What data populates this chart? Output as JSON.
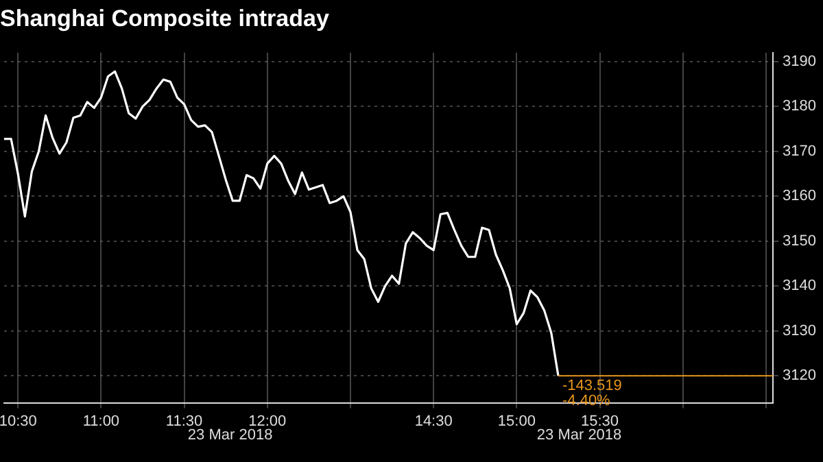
{
  "chart_data": {
    "type": "line",
    "title": "Shanghai Composite intraday",
    "categories": [
      null,
      null,
      "10:30",
      null,
      null,
      null,
      null,
      null,
      null,
      null,
      null,
      null,
      null,
      null,
      "11:00",
      null,
      null,
      null,
      null,
      null,
      null,
      null,
      null,
      null,
      null,
      null,
      "11:30",
      null,
      null,
      null,
      null,
      null,
      null,
      null,
      null,
      null,
      null,
      null,
      "12:00",
      null,
      null,
      null,
      null,
      null,
      null,
      null,
      null,
      null,
      null,
      null,
      null,
      null,
      null,
      null,
      null,
      null,
      null,
      null,
      null,
      null,
      null,
      null,
      "14:30",
      null,
      null,
      null,
      null,
      null,
      null,
      null,
      null,
      null,
      null,
      null,
      "15:00",
      null,
      null,
      null,
      null,
      null,
      null,
      null,
      null,
      null,
      null,
      null,
      "15:30",
      null,
      null,
      null,
      null,
      null,
      null,
      null,
      null,
      null,
      null,
      null,
      null,
      null,
      null,
      null,
      null,
      null,
      null,
      null,
      null,
      null,
      null,
      null,
      null,
      null
    ],
    "series": [
      {
        "color": "#ffffff",
        "values": [
          3172.8,
          3172.8,
          3165,
          3155.5,
          3165.5,
          3170,
          3178,
          3173,
          3169.5,
          3172,
          3177.5,
          3178,
          3181,
          3179.7,
          3182,
          3186.7,
          3187.8,
          3184,
          3178.5,
          3177.3,
          3180,
          3181.5,
          3184,
          3186,
          3185.5,
          3182,
          3180.5,
          3177,
          3175.5,
          3175.8,
          3174.3,
          3169,
          3163.7,
          3159,
          3159,
          3164.7,
          3164,
          3161.7,
          3167.3,
          3169,
          3167.3,
          3163.5,
          3160.5,
          3165.3,
          3161.5,
          3162,
          3162.5,
          3158.5,
          3159,
          3160,
          3156.5,
          3148,
          3146,
          3139.5,
          3136.5,
          3140,
          3142.3,
          3140.5,
          3149.5,
          3152,
          3150.7,
          3149,
          3148,
          3156,
          3156.3,
          3152.5,
          3149,
          3146.5,
          3146.5,
          3153,
          3152.5,
          3147,
          3143.5,
          3139.5,
          3131.5,
          3134,
          3139,
          3137.5,
          3134.5,
          3129.5,
          3120,
          null,
          null,
          null,
          null,
          null,
          null,
          null,
          null,
          null,
          null,
          null,
          null,
          null,
          null,
          null,
          null,
          null,
          null,
          null,
          null,
          null,
          null,
          null,
          null,
          null,
          null,
          null,
          null,
          null,
          null,
          null
        ]
      }
    ],
    "ylim": [
      3114,
      3192
    ],
    "yticks": [
      3120,
      3130,
      3140,
      3150,
      3160,
      3170,
      3180,
      3190
    ],
    "grid": true,
    "ref_lines": [
      {
        "axis": "y",
        "value": 3120,
        "color": "#e8941a"
      }
    ],
    "annotations": [
      "-143.519",
      "-4.40%",
      "23 Mar 2018",
      "23 Mar 2018"
    ]
  }
}
